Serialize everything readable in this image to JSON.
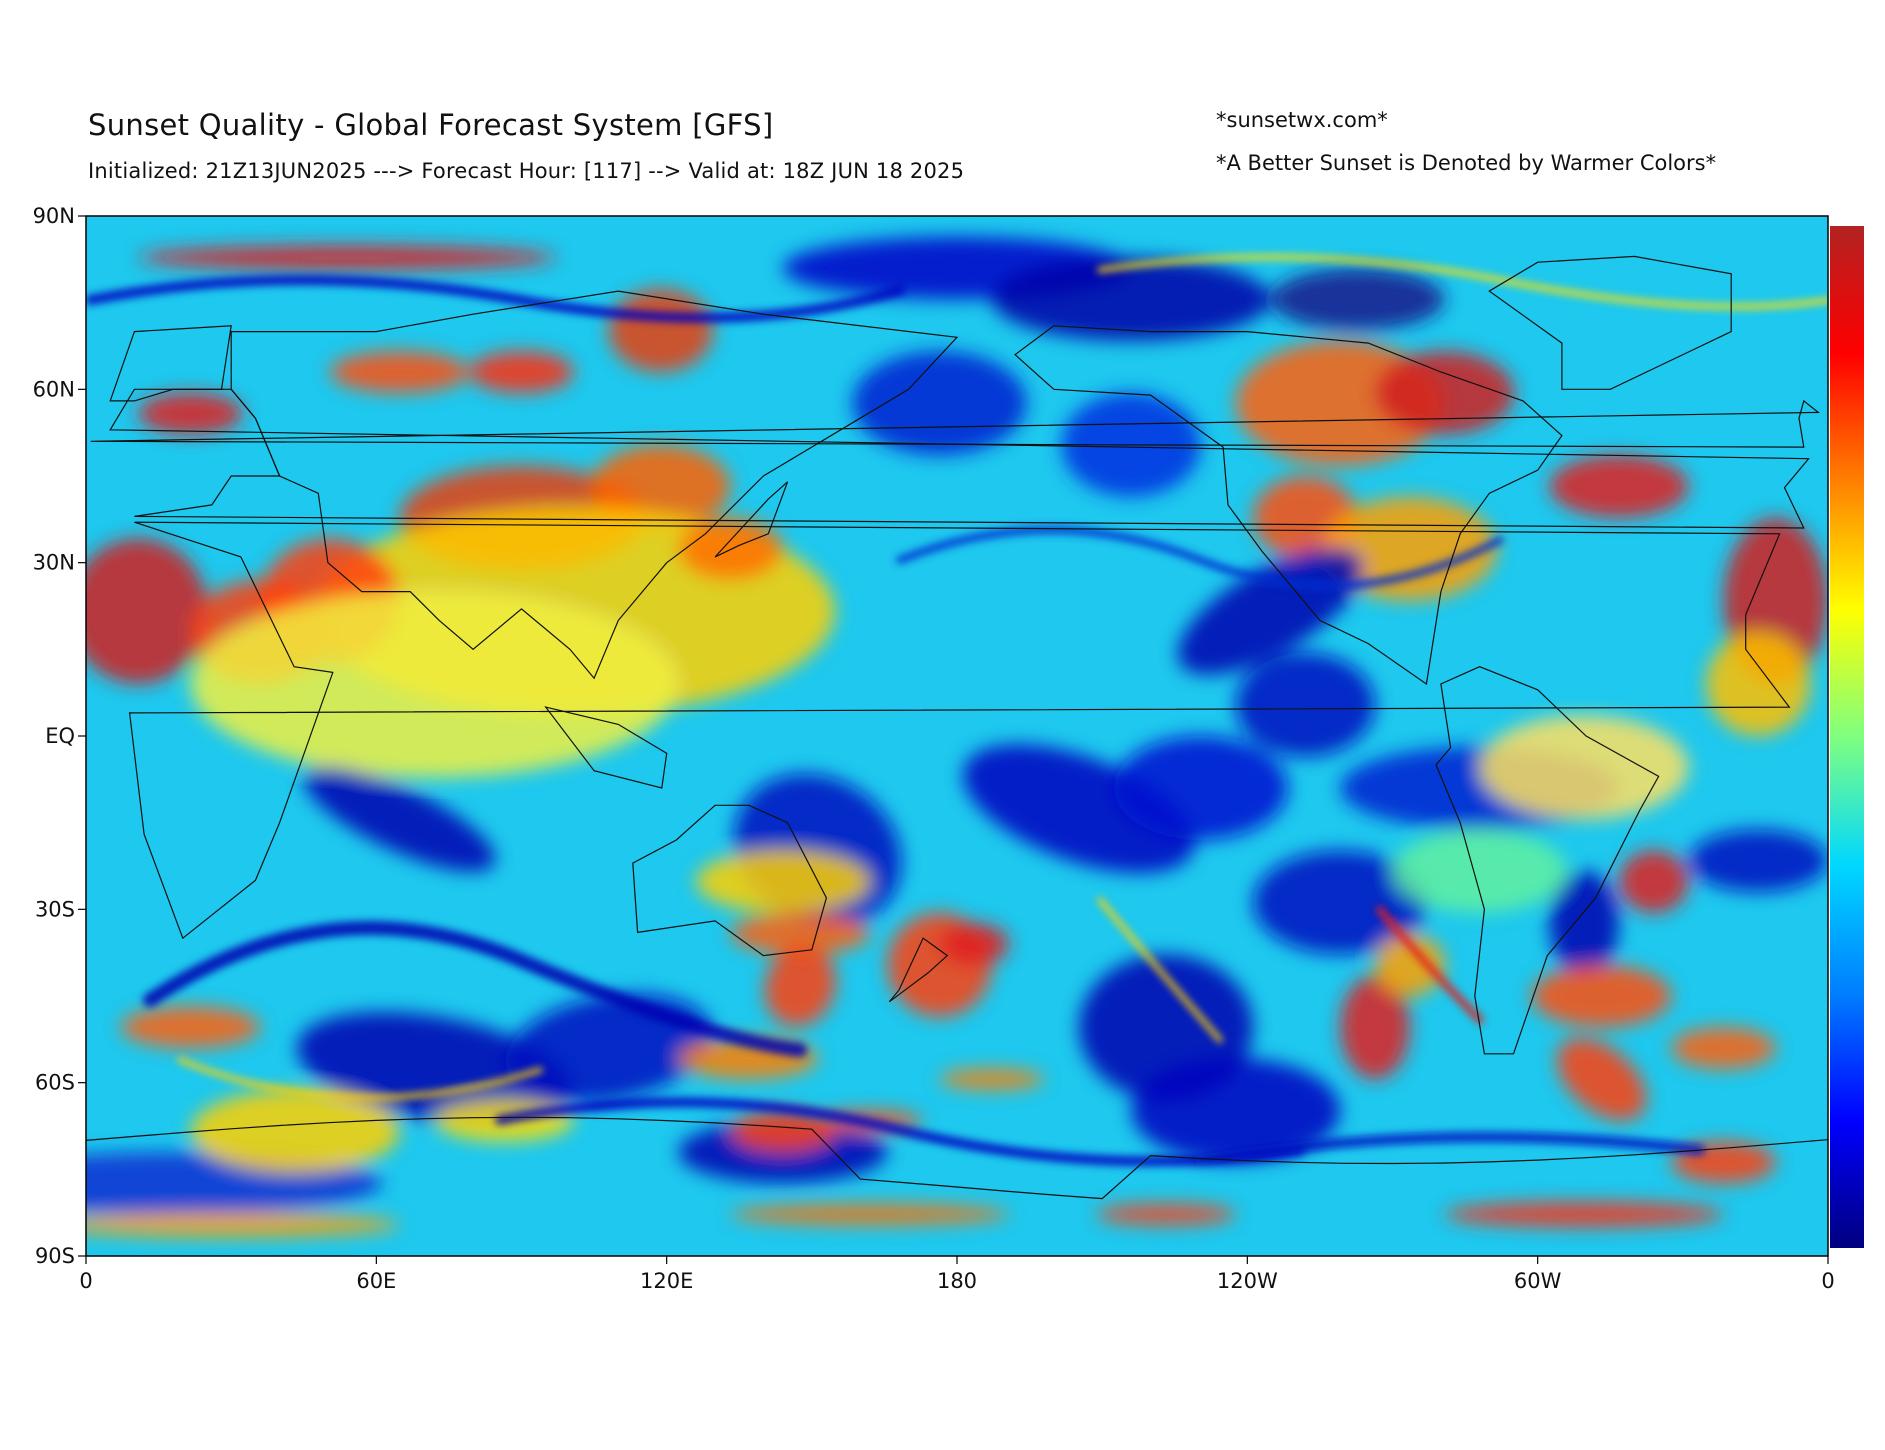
{
  "header": {
    "title": "Sunset Quality - Global Forecast System [GFS]",
    "subtitle": "Initialized: 21Z13JUN2025 ---> Forecast Hour: [117] --> Valid at: 18Z JUN 18 2025",
    "site": "*sunsetwx.com*",
    "note": "*A Better Sunset is Denoted by Warmer Colors*"
  },
  "map": {
    "projection": "equirectangular",
    "central_meridian": 180,
    "lat_labels": [
      "90N",
      "60N",
      "30N",
      "EQ",
      "30S",
      "60S",
      "90S"
    ],
    "lon_labels": [
      "0",
      "60E",
      "120E",
      "180",
      "120W",
      "60W",
      "0"
    ],
    "colormap": "jet",
    "colormap_stops": [
      "#00007f",
      "#0000ff",
      "#007fff",
      "#00d8ff",
      "#7fff7f",
      "#ffff00",
      "#ff8000",
      "#ff0000",
      "#b22222"
    ]
  }
}
